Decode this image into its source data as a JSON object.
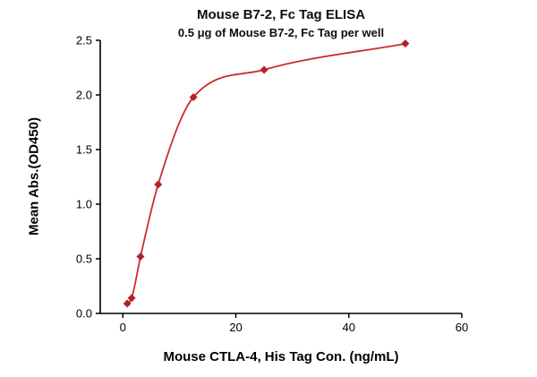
{
  "chart": {
    "title": "Mouse B7-2, Fc Tag ELISA",
    "subtitle": "0.5 μg of Mouse B7-2, Fc Tag per well",
    "xlabel": "Mouse CTLA-4, His Tag Con. (ng/mL)",
    "ylabel": "Mean Abs.(OD450)"
  },
  "chart_data": {
    "type": "scatter",
    "title": "Mouse B7-2, Fc Tag ELISA",
    "subtitle": "0.5 μg of Mouse B7-2, Fc Tag per well",
    "xlabel": "Mouse CTLA-4, His Tag Con. (ng/mL)",
    "ylabel": "Mean Abs.(OD450)",
    "x": [
      0.78,
      1.56,
      3.125,
      6.25,
      12.5,
      25,
      50
    ],
    "y": [
      0.09,
      0.14,
      0.52,
      1.18,
      1.98,
      2.23,
      2.47
    ],
    "curve": "smooth-fit-through-points",
    "xlim": [
      -4,
      60
    ],
    "ylim": [
      0,
      2.5
    ],
    "xticks": [
      0,
      20,
      40,
      60
    ],
    "xtick_labels": [
      "0",
      "20",
      "40",
      "60"
    ],
    "yticks": [
      0,
      0.5,
      1.0,
      1.5,
      2.0,
      2.5
    ],
    "ytick_labels": [
      "0.0",
      "0.5",
      "1.0",
      "1.5",
      "2.0",
      "2.5"
    ],
    "grid": false,
    "legend": "none",
    "line_color": "#cb2c30",
    "marker_color": "#b2222a",
    "marker_shape": "diamond",
    "axis_color": "#000000"
  }
}
